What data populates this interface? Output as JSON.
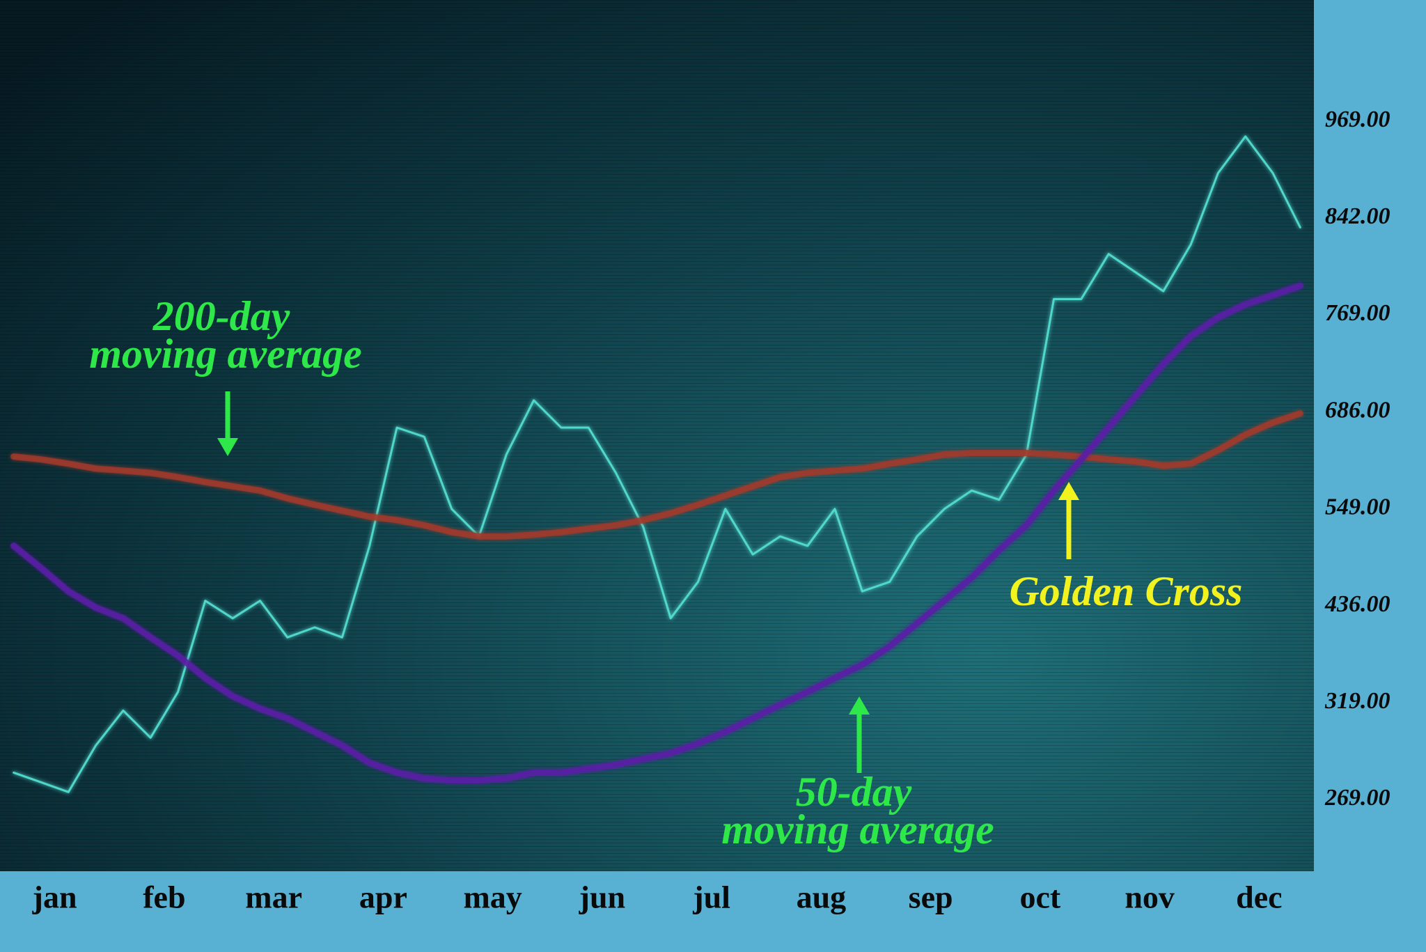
{
  "chart_data": {
    "type": "line",
    "categories": [
      "jan",
      null,
      null,
      null,
      "feb",
      null,
      null,
      null,
      "mar",
      null,
      null,
      null,
      "apr",
      null,
      null,
      null,
      "may",
      null,
      null,
      null,
      "jun",
      null,
      null,
      null,
      "jul",
      null,
      null,
      null,
      "aug",
      null,
      null,
      null,
      "sep",
      null,
      null,
      null,
      "oct",
      null,
      null,
      null,
      "nov",
      null,
      null,
      null,
      "dec",
      null,
      null,
      null
    ],
    "series": [
      {
        "color": "#52dccf",
        "values": [
          283,
          278,
          273,
          297,
          315,
          301,
          332,
          442,
          421,
          442,
          398,
          410,
          398,
          506,
          664,
          651,
          549,
          517,
          626,
          696,
          664,
          664,
          600,
          528,
          421,
          464,
          549,
          496,
          517,
          506,
          549,
          453,
          464,
          517,
          549,
          575,
          562,
          626,
          781,
          781,
          815,
          801,
          787,
          822,
          901,
          949,
          901,
          835
        ]
      },
      {
        "color": "#a23a2a",
        "values": [
          623,
          619,
          613,
          606,
          603,
          600,
          594,
          587,
          581,
          575,
          564,
          555,
          547,
          540,
          536,
          530,
          522,
          517,
          517,
          519,
          522,
          526,
          530,
          536,
          544,
          555,
          568,
          581,
          594,
          600,
          603,
          606,
          613,
          619,
          626,
          628,
          628,
          628,
          626,
          623,
          619,
          616,
          610,
          613,
          632,
          654,
          671,
          684
        ]
      },
      {
        "color": "#5a1ca6",
        "values": [
          506,
          480,
          453,
          434,
          421,
          398,
          376,
          349,
          327,
          316,
          311,
          304,
          297,
          288,
          283,
          280,
          279,
          279,
          280,
          283,
          283,
          285,
          287,
          290,
          293,
          298,
          304,
          311,
          318,
          332,
          349,
          365,
          387,
          415,
          442,
          469,
          501,
          530,
          575,
          619,
          664,
          700,
          727,
          751,
          767,
          777,
          784,
          791
        ]
      }
    ],
    "yticks": [
      {
        "value": 969,
        "label": "969.00"
      },
      {
        "value": 842,
        "label": "842.00"
      },
      {
        "value": 769,
        "label": "769.00"
      },
      {
        "value": 686,
        "label": "686.00"
      },
      {
        "value": 549,
        "label": "549.00"
      },
      {
        "value": 436,
        "label": "436.00"
      },
      {
        "value": 319,
        "label": "319.00"
      },
      {
        "value": 269,
        "label": "269.00"
      }
    ],
    "annotations": [
      {
        "lines": [
          "200-day",
          "moving average"
        ],
        "color": "#2ee84a"
      },
      {
        "lines": [
          "50-day",
          "moving average"
        ],
        "color": "#2ee84a"
      },
      {
        "lines": [
          "Golden Cross"
        ],
        "color": "#f2f21e"
      }
    ]
  }
}
